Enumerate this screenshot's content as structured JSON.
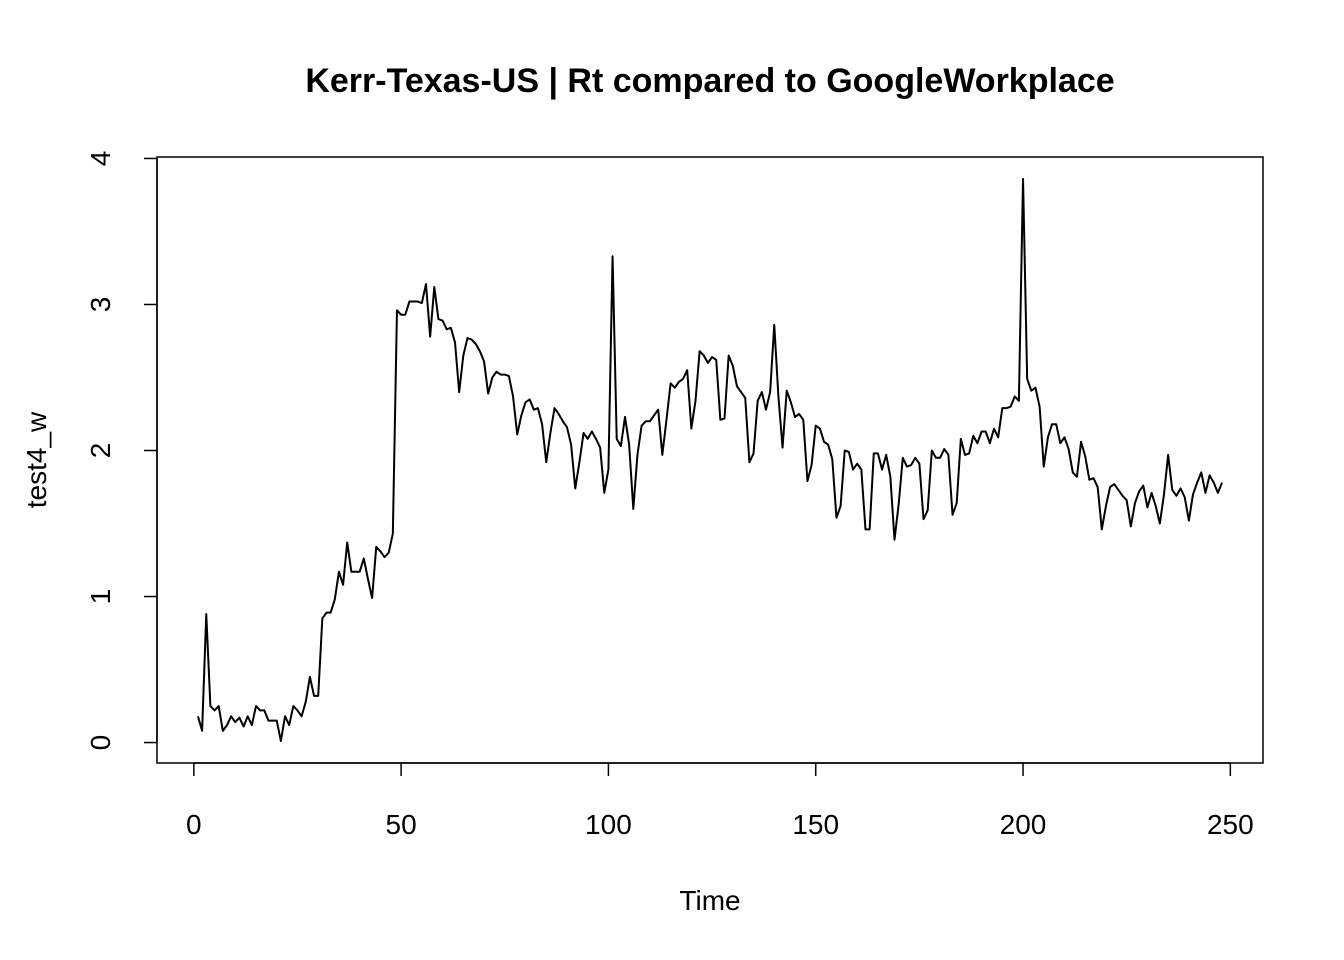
{
  "chart_data": {
    "type": "line",
    "title": "Kerr-Texas-US | Rt compared to GoogleWorkplace",
    "x_label": "Time",
    "y_label": "test4_w",
    "color": "#000000",
    "xlim": [
      -8.88,
      257.88
    ],
    "ylim": [
      -0.14,
      4.01
    ],
    "xticks": [
      0,
      50,
      100,
      150,
      200,
      250
    ],
    "yticks": [
      0,
      1,
      2,
      3,
      4
    ],
    "x": [
      1,
      2,
      3,
      4,
      5,
      6,
      7,
      8,
      9,
      10,
      11,
      12,
      13,
      14,
      15,
      16,
      17,
      18,
      19,
      20,
      21,
      22,
      23,
      24,
      25,
      26,
      27,
      28,
      29,
      30,
      31,
      32,
      33,
      34,
      35,
      36,
      37,
      38,
      39,
      40,
      41,
      42,
      43,
      44,
      45,
      46,
      47,
      48,
      49,
      50,
      51,
      52,
      53,
      54,
      55,
      56,
      57,
      58,
      59,
      60,
      61,
      62,
      63,
      64,
      65,
      66,
      67,
      68,
      69,
      70,
      71,
      72,
      73,
      74,
      75,
      76,
      77,
      78,
      79,
      80,
      81,
      82,
      83,
      84,
      85,
      86,
      87,
      88,
      89,
      90,
      91,
      92,
      93,
      94,
      95,
      96,
      97,
      98,
      99,
      100,
      101,
      102,
      103,
      104,
      105,
      106,
      107,
      108,
      109,
      110,
      111,
      112,
      113,
      114,
      115,
      116,
      117,
      118,
      119,
      120,
      121,
      122,
      123,
      124,
      125,
      126,
      127,
      128,
      129,
      130,
      131,
      132,
      133,
      134,
      135,
      136,
      137,
      138,
      139,
      140,
      141,
      142,
      143,
      144,
      145,
      146,
      147,
      148,
      149,
      150,
      151,
      152,
      153,
      154,
      155,
      156,
      157,
      158,
      159,
      160,
      161,
      162,
      163,
      164,
      165,
      166,
      167,
      168,
      169,
      170,
      171,
      172,
      173,
      174,
      175,
      176,
      177,
      178,
      179,
      180,
      181,
      182,
      183,
      184,
      185,
      186,
      187,
      188,
      189,
      190,
      191,
      192,
      193,
      194,
      195,
      196,
      197,
      198,
      199,
      200,
      201,
      202,
      203,
      204,
      205,
      206,
      207,
      208,
      209,
      210,
      211,
      212,
      213,
      214,
      215,
      216,
      217,
      218,
      219,
      220,
      221,
      222,
      223,
      224,
      225,
      226,
      227,
      228,
      229,
      230,
      231,
      232,
      233,
      234,
      235,
      236,
      237,
      238,
      239,
      240,
      241,
      242,
      243,
      244,
      245,
      246,
      247,
      248
    ],
    "values": [
      0.18,
      0.08,
      0.88,
      0.25,
      0.22,
      0.25,
      0.08,
      0.12,
      0.18,
      0.14,
      0.17,
      0.11,
      0.18,
      0.12,
      0.25,
      0.22,
      0.22,
      0.15,
      0.15,
      0.15,
      0.01,
      0.18,
      0.12,
      0.25,
      0.22,
      0.18,
      0.28,
      0.45,
      0.32,
      0.32,
      0.85,
      0.89,
      0.89,
      0.98,
      1.17,
      1.08,
      1.37,
      1.17,
      1.17,
      1.17,
      1.26,
      1.12,
      0.99,
      1.34,
      1.31,
      1.27,
      1.3,
      1.43,
      2.96,
      2.93,
      2.93,
      3.02,
      3.02,
      3.02,
      3.01,
      3.14,
      2.78,
      3.12,
      2.9,
      2.89,
      2.83,
      2.84,
      2.74,
      2.4,
      2.65,
      2.77,
      2.76,
      2.73,
      2.68,
      2.61,
      2.39,
      2.5,
      2.54,
      2.52,
      2.52,
      2.51,
      2.37,
      2.11,
      2.24,
      2.33,
      2.35,
      2.28,
      2.29,
      2.18,
      1.92,
      2.12,
      2.29,
      2.25,
      2.2,
      2.16,
      2.04,
      1.74,
      1.92,
      2.12,
      2.08,
      2.13,
      2.08,
      2.02,
      1.71,
      1.87,
      3.33,
      2.08,
      2.03,
      2.23,
      2.04,
      1.6,
      1.97,
      2.17,
      2.2,
      2.2,
      2.24,
      2.28,
      1.97,
      2.21,
      2.46,
      2.43,
      2.47,
      2.49,
      2.55,
      2.15,
      2.34,
      2.68,
      2.65,
      2.6,
      2.64,
      2.62,
      2.21,
      2.22,
      2.65,
      2.58,
      2.44,
      2.4,
      2.36,
      1.92,
      1.98,
      2.34,
      2.4,
      2.28,
      2.4,
      2.86,
      2.37,
      2.02,
      2.41,
      2.33,
      2.23,
      2.25,
      2.21,
      1.79,
      1.9,
      2.17,
      2.15,
      2.06,
      2.04,
      1.94,
      1.54,
      1.62,
      2.0,
      1.99,
      1.87,
      1.91,
      1.87,
      1.46,
      1.46,
      1.98,
      1.98,
      1.87,
      1.97,
      1.82,
      1.39,
      1.63,
      1.95,
      1.89,
      1.9,
      1.95,
      1.91,
      1.53,
      1.59,
      2.0,
      1.95,
      1.95,
      2.01,
      1.97,
      1.56,
      1.64,
      2.08,
      1.97,
      1.98,
      2.1,
      2.05,
      2.13,
      2.13,
      2.05,
      2.15,
      2.09,
      2.29,
      2.29,
      2.3,
      2.37,
      2.34,
      3.86,
      2.49,
      2.41,
      2.43,
      2.3,
      1.89,
      2.09,
      2.18,
      2.18,
      2.05,
      2.09,
      2.01,
      1.85,
      1.82,
      2.06,
      1.96,
      1.8,
      1.81,
      1.75,
      1.46,
      1.62,
      1.75,
      1.77,
      1.73,
      1.69,
      1.66,
      1.48,
      1.64,
      1.72,
      1.76,
      1.61,
      1.71,
      1.62,
      1.5,
      1.7,
      1.97,
      1.73,
      1.69,
      1.74,
      1.68,
      1.52,
      1.7,
      1.78,
      1.85,
      1.71,
      1.83,
      1.78,
      1.71,
      1.78
    ]
  }
}
